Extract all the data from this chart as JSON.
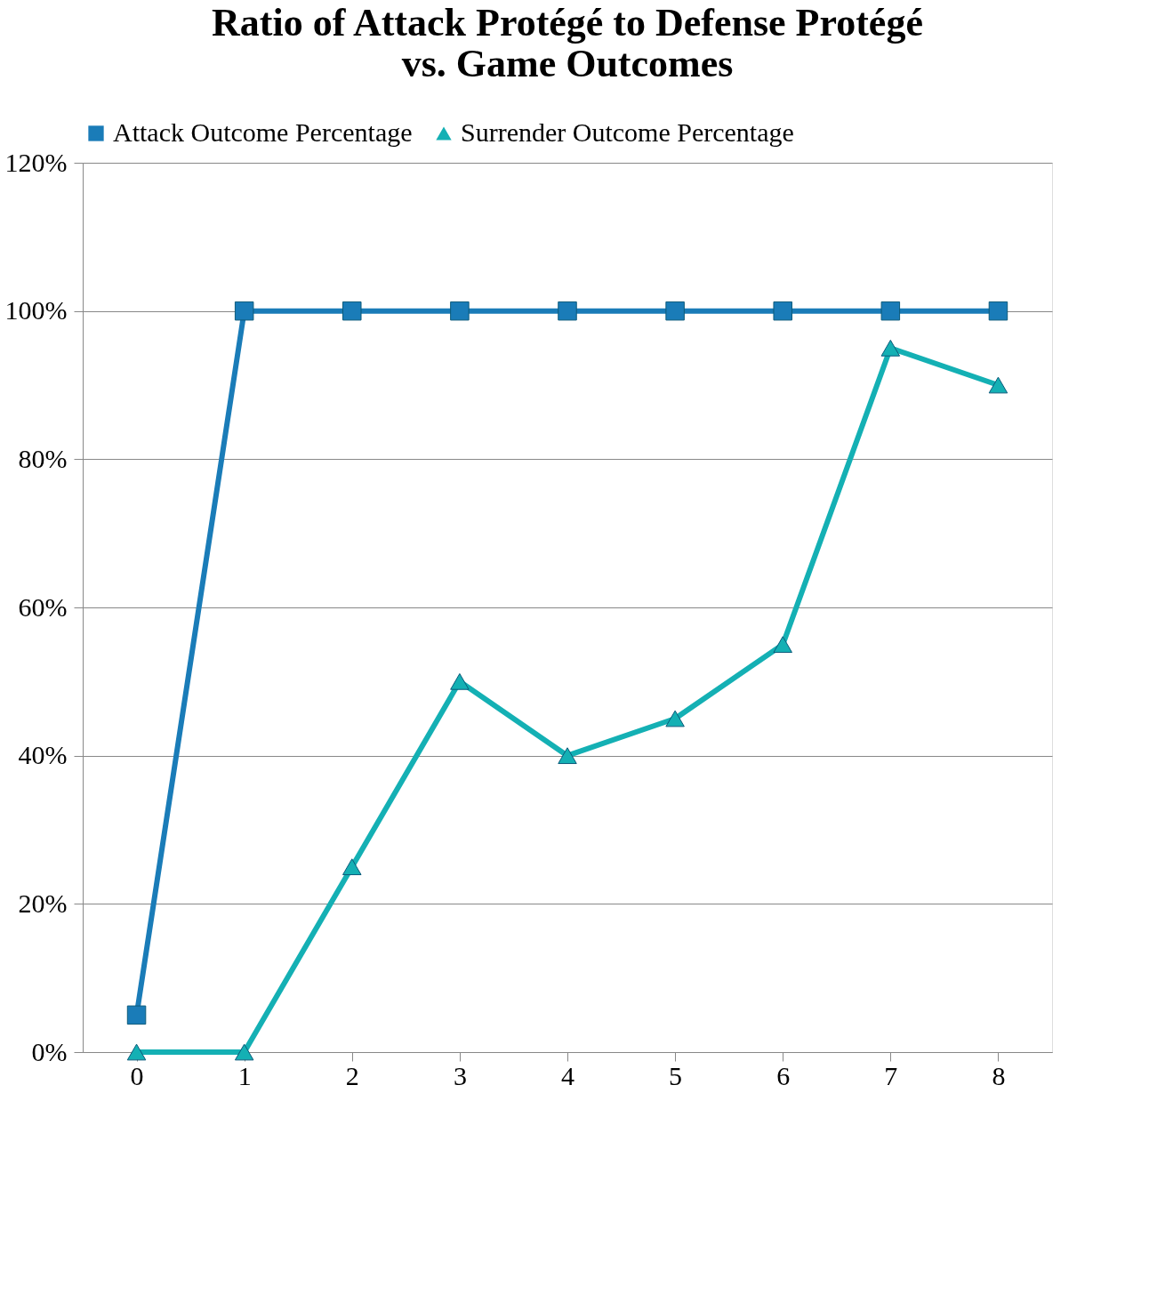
{
  "chart_data": {
    "type": "line",
    "title": "Ratio of Attack Protégé to Defense Protégé\nvs. Game Outcomes",
    "categories": [
      "0",
      "1",
      "2",
      "3",
      "4",
      "5",
      "6",
      "7",
      "8"
    ],
    "series": [
      {
        "name": "Attack Outcome Percentage",
        "color": "#1a7cb8",
        "marker": "square",
        "values": [
          5,
          100,
          100,
          100,
          100,
          100,
          100,
          100,
          100
        ]
      },
      {
        "name": "Surrender Outcome Percentage",
        "color": "#14b0b4",
        "marker": "triangle",
        "values": [
          0,
          0,
          25,
          50,
          40,
          45,
          55,
          95,
          90
        ]
      }
    ],
    "ylim": [
      0,
      120
    ],
    "yticks": [
      {
        "value": 0,
        "label": "0%"
      },
      {
        "value": 20,
        "label": "20%"
      },
      {
        "value": 40,
        "label": "40%"
      },
      {
        "value": 60,
        "label": "60%"
      },
      {
        "value": 80,
        "label": "80%"
      },
      {
        "value": 100,
        "label": "100%"
      },
      {
        "value": 120,
        "label": "120%"
      }
    ],
    "grid": "y",
    "legend": "top",
    "line_style": "solid"
  }
}
